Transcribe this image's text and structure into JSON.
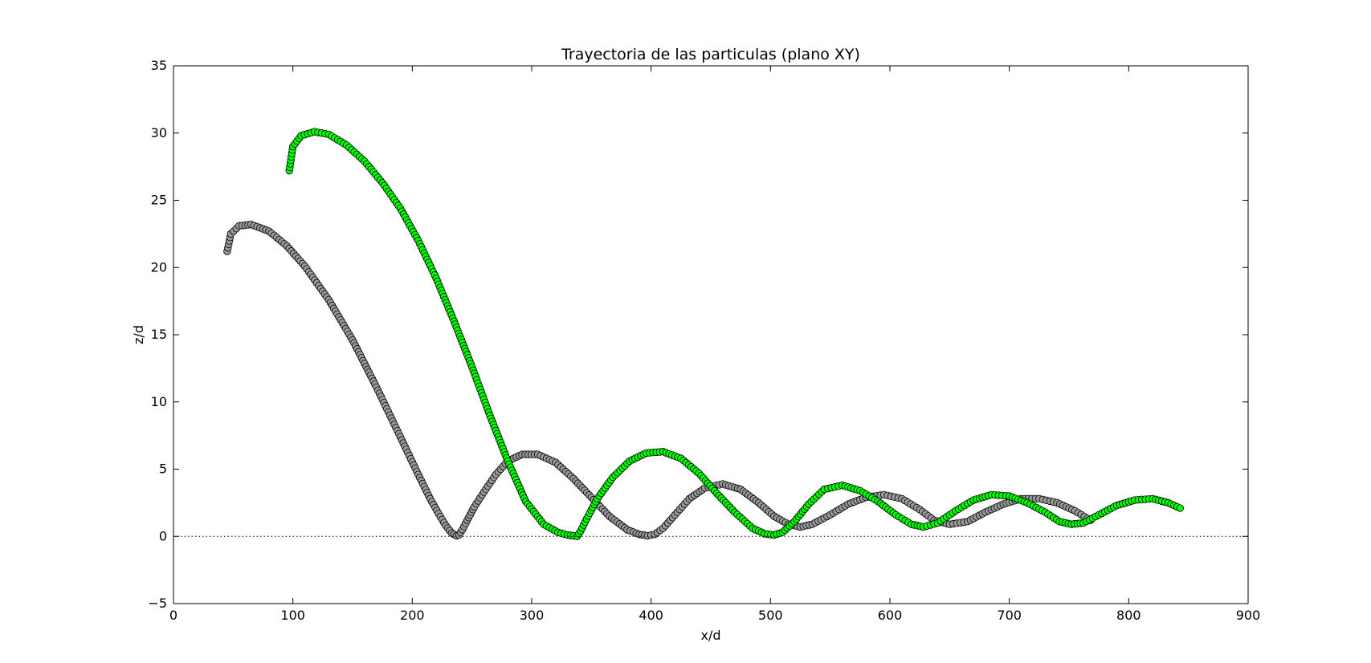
{
  "chart_data": {
    "type": "scatter",
    "title": "Trayectoria de las particulas (plano XY)",
    "xlabel": "x/d",
    "ylabel": "z/d",
    "xlim": [
      0,
      900
    ],
    "ylim": [
      -5,
      35
    ],
    "xticks": [
      "0",
      "100",
      "200",
      "300",
      "400",
      "500",
      "600",
      "700",
      "800",
      "900"
    ],
    "yticks": [
      "−5",
      "0",
      "5",
      "10",
      "15",
      "20",
      "25",
      "30",
      "35"
    ],
    "grid": false,
    "legend": "none",
    "reference_line": {
      "y": 0,
      "style": "dotted"
    },
    "series": [
      {
        "color": "#999999",
        "marker": "circle",
        "x": [
          45,
          48,
          55,
          65,
          80,
          95,
          110,
          130,
          150,
          170,
          190,
          205,
          215,
          222,
          228,
          233,
          237,
          239,
          242,
          246,
          252,
          260,
          270,
          280,
          292,
          305,
          320,
          335,
          350,
          365,
          380,
          390,
          397,
          403,
          410,
          420,
          432,
          445,
          460,
          475,
          490,
          503,
          515,
          525,
          535,
          550,
          565,
          580,
          595,
          610,
          625,
          637,
          650,
          665,
          680,
          695,
          710,
          725,
          740,
          755,
          768
        ],
        "y": [
          21.2,
          22.5,
          23.1,
          23.2,
          22.7,
          21.6,
          20.1,
          17.6,
          14.6,
          11.1,
          7.4,
          4.6,
          2.8,
          1.7,
          0.8,
          0.25,
          0.05,
          0.1,
          0.5,
          1.2,
          2.2,
          3.3,
          4.6,
          5.6,
          6.1,
          6.1,
          5.5,
          4.3,
          2.9,
          1.5,
          0.5,
          0.15,
          0.05,
          0.15,
          0.6,
          1.6,
          2.8,
          3.6,
          3.9,
          3.5,
          2.5,
          1.5,
          0.9,
          0.7,
          0.9,
          1.6,
          2.4,
          2.9,
          3.1,
          2.8,
          2.0,
          1.2,
          0.9,
          1.1,
          1.8,
          2.4,
          2.8,
          2.8,
          2.5,
          1.9,
          1.2
        ]
      },
      {
        "color": "#00ff00",
        "marker": "circle",
        "x": [
          97,
          100,
          107,
          118,
          130,
          145,
          160,
          175,
          190,
          205,
          220,
          235,
          250,
          265,
          280,
          295,
          310,
          322,
          330,
          335,
          338,
          341,
          346,
          355,
          368,
          382,
          396,
          410,
          425,
          440,
          455,
          470,
          485,
          495,
          503,
          510,
          520,
          532,
          545,
          560,
          575,
          590,
          605,
          618,
          628,
          640,
          655,
          670,
          685,
          700,
          715,
          730,
          742,
          752,
          762,
          775,
          790,
          805,
          820,
          833,
          843
        ],
        "y": [
          27.2,
          29.0,
          29.8,
          30.1,
          29.9,
          29.1,
          27.9,
          26.3,
          24.4,
          22.0,
          19.2,
          16.0,
          12.6,
          9.0,
          5.6,
          2.6,
          0.9,
          0.3,
          0.1,
          0.05,
          0.0,
          0.4,
          1.3,
          2.8,
          4.4,
          5.6,
          6.2,
          6.3,
          5.8,
          4.7,
          3.2,
          1.8,
          0.6,
          0.2,
          0.1,
          0.3,
          1.1,
          2.4,
          3.5,
          3.8,
          3.4,
          2.6,
          1.6,
          0.9,
          0.7,
          1.0,
          1.9,
          2.7,
          3.1,
          3.0,
          2.5,
          1.8,
          1.1,
          0.9,
          1.0,
          1.6,
          2.3,
          2.7,
          2.8,
          2.5,
          2.1
        ]
      }
    ]
  }
}
